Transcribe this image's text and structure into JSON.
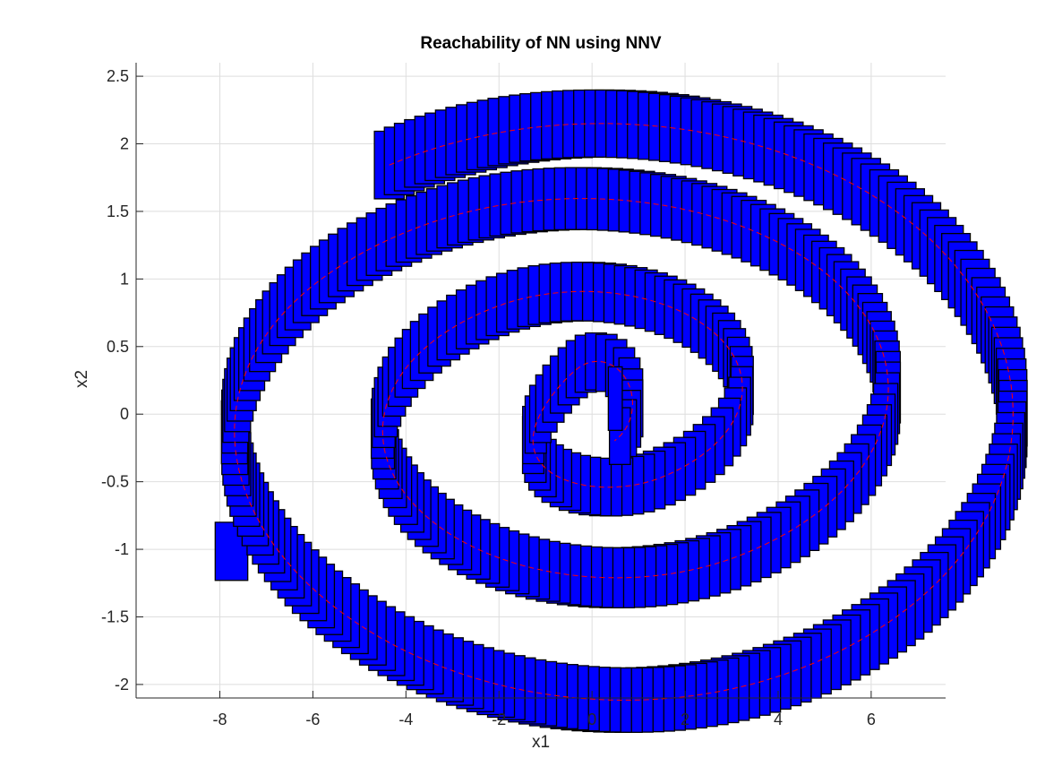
{
  "chart_data": {
    "type": "scatter",
    "title": "Reachability of NN using NNV",
    "xlabel": "x1",
    "ylabel": "x2",
    "xlim": [
      -9.8,
      7.6
    ],
    "ylim": [
      -2.1,
      2.6
    ],
    "xticks": [
      -8,
      -6,
      -4,
      -2,
      0,
      2,
      4,
      6
    ],
    "xtick_labels": [
      "-8",
      "-6",
      "-4",
      "-2",
      "0",
      "2",
      "4",
      "6"
    ],
    "yticks": [
      -2,
      -1.5,
      -1,
      -0.5,
      0,
      0.5,
      1,
      1.5,
      2,
      2.5
    ],
    "ytick_labels": [
      "-2",
      "-1.5",
      "-1",
      "-0.5",
      "0",
      "0.5",
      "1",
      "1.5",
      "2",
      "2.5"
    ],
    "grid": true,
    "legend": "none",
    "series": [
      {
        "kind": "reachable-set-boxes",
        "color": "#0000ff",
        "edge_color": "#000000",
        "spiral": {
          "center": [
            0.2,
            0.0
          ],
          "start_angle_deg": -59,
          "half_turns": 7,
          "semi_axes": [
            {
              "rx": 0.55,
              "ry": 0.23
            },
            {
              "rx": 0.95,
              "ry": 0.4
            },
            {
              "rx": 2.45,
              "ry": 0.55
            },
            {
              "rx": 4.35,
              "ry": 0.93
            },
            {
              "rx": 5.65,
              "ry": 1.23
            },
            {
              "rx": 7.55,
              "ry": 1.62
            },
            {
              "rx": 8.85,
              "ry": 2.15
            }
          ],
          "box_width": [
            0.45,
            0.64
          ],
          "box_height": [
            0.42,
            0.5
          ]
        },
        "first_box": {
          "x1": [
            -8.1,
            -7.4
          ],
          "x2": [
            -1.23,
            -0.8
          ]
        },
        "last_box": {
          "x1": [
            0.35,
            0.65
          ],
          "x2": [
            -0.12,
            0.35
          ]
        }
      },
      {
        "kind": "simulation-trace",
        "color": "#ff0000",
        "line_style": "dashed"
      }
    ]
  }
}
